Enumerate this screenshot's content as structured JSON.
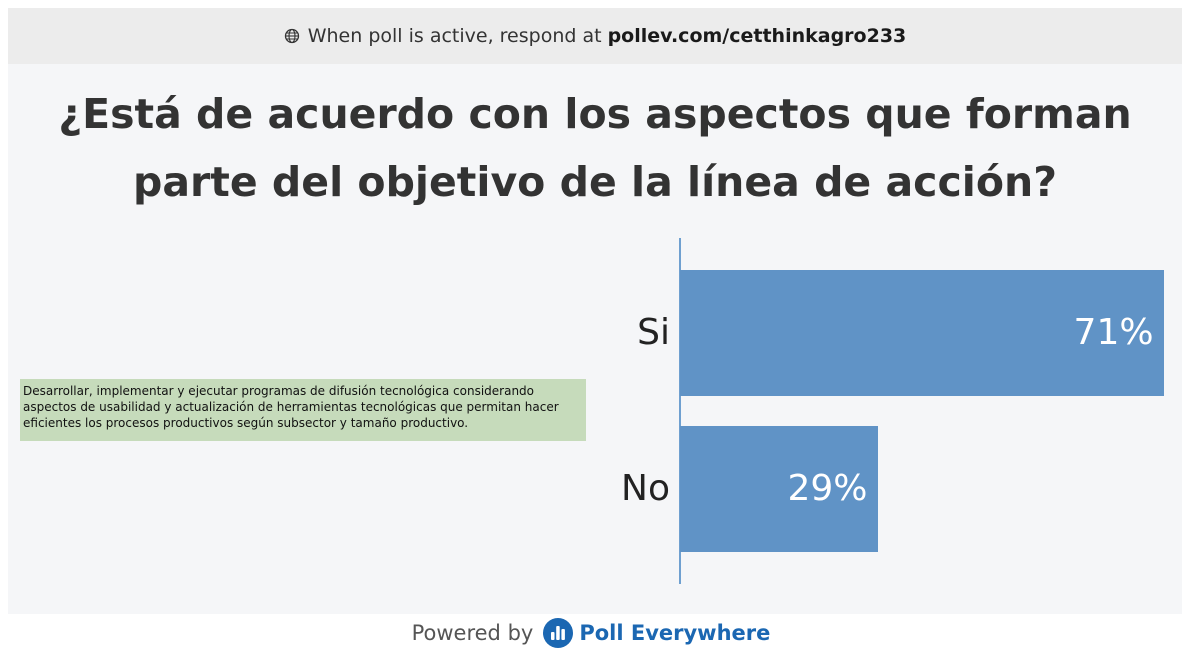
{
  "banner": {
    "prefix": "When poll is active, respond at",
    "url": "pollev.com/cetthinkagro233",
    "icon": "globe-icon"
  },
  "question": {
    "text": "¿Está de acuerdo con los aspectos que forman parte del objetivo de la línea de acción?"
  },
  "note": {
    "text": "Desarrollar,  implementar y ejecutar programas de difusión tecnológica considerando aspectos de usabilidad y actualización de herramientas tecnológicas que permitan hacer eficientes los procesos productivos según subsector y tamaño productivo."
  },
  "chart_data": {
    "type": "bar",
    "orientation": "horizontal",
    "categories": [
      "Si",
      "No"
    ],
    "values": [
      71,
      29
    ],
    "value_labels": [
      "71%",
      "29%"
    ],
    "xlim": [
      0,
      74
    ],
    "bar_color": "#6093c6"
  },
  "footer": {
    "powered_by": "Powered by",
    "brand": "Poll Everywhere",
    "brand_color": "#1b67b2",
    "icon": "poll-everywhere-logo-icon"
  }
}
